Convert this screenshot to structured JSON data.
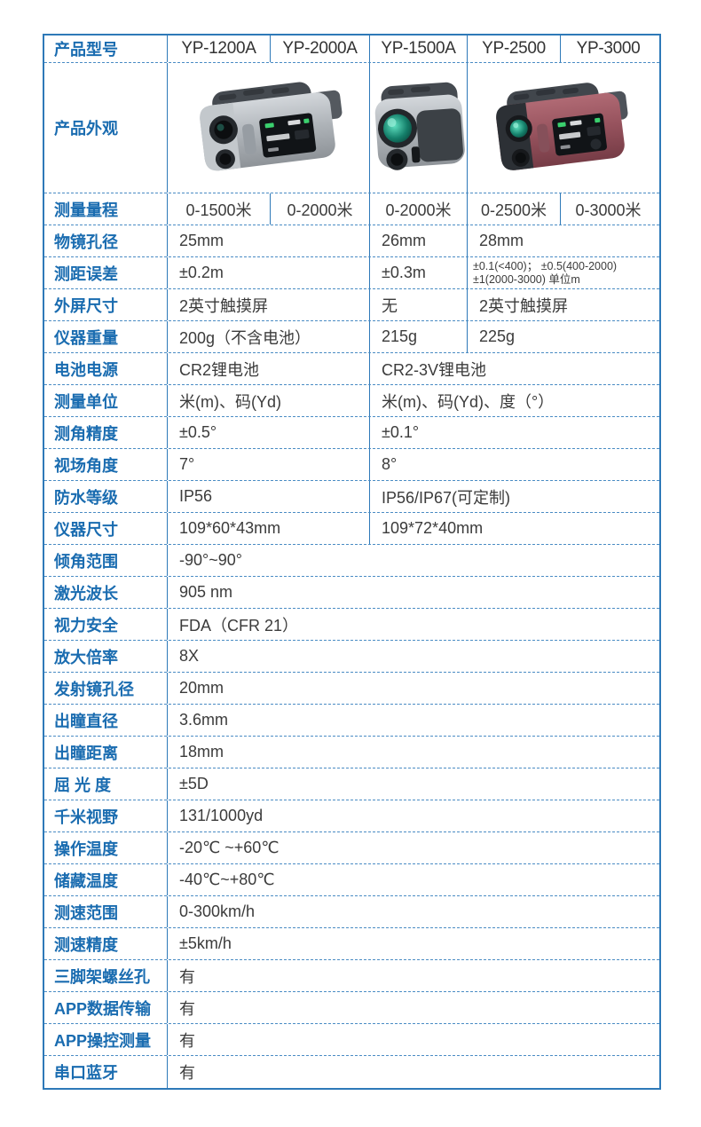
{
  "colors": {
    "accent": "#1a6cb0",
    "border": "#2e79b8",
    "text": "#3b3b3b"
  },
  "table": {
    "header": {
      "label": "产品型号",
      "models": [
        "YP-1200A",
        "YP-2000A",
        "YP-1500A",
        "YP-2500",
        "YP-3000"
      ]
    },
    "appearance": {
      "label": "产品外观",
      "images": [
        {
          "icon": "rangefinder-silver-angled-image",
          "models": "YP-1200A / YP-2000A"
        },
        {
          "icon": "rangefinder-silver-front-image",
          "models": "YP-1500A"
        },
        {
          "icon": "rangefinder-red-angled-image",
          "models": "YP-2500 / YP-3000"
        }
      ]
    },
    "rows": [
      {
        "label": "测量量程",
        "cells": [
          {
            "t": "0-1500米",
            "s": 1,
            "center": true
          },
          {
            "t": "0-2000米",
            "s": 1,
            "center": true
          },
          {
            "t": "0-2000米",
            "s": 1,
            "center": true
          },
          {
            "t": "0-2500米",
            "s": 1,
            "center": true
          },
          {
            "t": "0-3000米",
            "s": 1,
            "center": true
          }
        ]
      },
      {
        "label": "物镜孔径",
        "cells": [
          {
            "t": "25mm",
            "s": 2
          },
          {
            "t": "26mm",
            "s": 1
          },
          {
            "t": "28mm",
            "s": 2
          }
        ]
      },
      {
        "label": "测距误差",
        "cells": [
          {
            "t": "±0.2m",
            "s": 2
          },
          {
            "t": "±0.3m",
            "s": 1
          },
          {
            "t": "±0.1(<400)； ±0.5(400-2000)\n±1(2000-3000) 单位m",
            "s": 2,
            "small": true
          }
        ]
      },
      {
        "label": "外屏尺寸",
        "cells": [
          {
            "t": "2英寸触摸屏",
            "s": 2
          },
          {
            "t": "无",
            "s": 1
          },
          {
            "t": "2英寸触摸屏",
            "s": 2
          }
        ]
      },
      {
        "label": "仪器重量",
        "cells": [
          {
            "t": "200g（不含电池）",
            "s": 2
          },
          {
            "t": "215g",
            "s": 1
          },
          {
            "t": "225g",
            "s": 2
          }
        ]
      },
      {
        "label": "电池电源",
        "cells": [
          {
            "t": "CR2锂电池",
            "s": 2
          },
          {
            "t": "CR2-3V锂电池",
            "s": 3
          }
        ]
      },
      {
        "label": "测量单位",
        "cells": [
          {
            "t": "米(m)、码(Yd)",
            "s": 2
          },
          {
            "t": "米(m)、码(Yd)、度（°）",
            "s": 3
          }
        ]
      },
      {
        "label": "测角精度",
        "cells": [
          {
            "t": "±0.5°",
            "s": 2
          },
          {
            "t": "±0.1°",
            "s": 3
          }
        ]
      },
      {
        "label": "视场角度",
        "cells": [
          {
            "t": "7°",
            "s": 2
          },
          {
            "t": "8°",
            "s": 3
          }
        ]
      },
      {
        "label": "防水等级",
        "cells": [
          {
            "t": "IP56",
            "s": 2
          },
          {
            "t": "IP56/IP67(可定制)",
            "s": 3
          }
        ]
      },
      {
        "label": "仪器尺寸",
        "cells": [
          {
            "t": "109*60*43mm",
            "s": 2
          },
          {
            "t": "109*72*40mm",
            "s": 3
          }
        ]
      },
      {
        "label": "倾角范围",
        "cells": [
          {
            "t": "-90°~90°",
            "s": 5
          }
        ]
      },
      {
        "label": "激光波长",
        "cells": [
          {
            "t": "905 nm",
            "s": 5
          }
        ]
      },
      {
        "label": "视力安全",
        "cells": [
          {
            "t": "FDA（CFR 21）",
            "s": 5
          }
        ]
      },
      {
        "label": "放大倍率",
        "cells": [
          {
            "t": "8X",
            "s": 5
          }
        ]
      },
      {
        "label": "发射镜孔径",
        "cells": [
          {
            "t": "20mm",
            "s": 5
          }
        ]
      },
      {
        "label": "出瞳直径",
        "cells": [
          {
            "t": "3.6mm",
            "s": 5
          }
        ]
      },
      {
        "label": "出瞳距离",
        "cells": [
          {
            "t": "18mm",
            "s": 5
          }
        ]
      },
      {
        "label": "屈 光 度",
        "cells": [
          {
            "t": "±5D",
            "s": 5
          }
        ]
      },
      {
        "label": "千米视野",
        "cells": [
          {
            "t": "131/1000yd",
            "s": 5
          }
        ]
      },
      {
        "label": "操作温度",
        "cells": [
          {
            "t": "-20℃ ~+60℃",
            "s": 5
          }
        ]
      },
      {
        "label": "储藏温度",
        "cells": [
          {
            "t": "-40℃~+80℃",
            "s": 5
          }
        ]
      },
      {
        "label": "测速范围",
        "cells": [
          {
            "t": "0-300km/h",
            "s": 5
          }
        ]
      },
      {
        "label": "测速精度",
        "cells": [
          {
            "t": "±5km/h",
            "s": 5
          }
        ]
      },
      {
        "label": "三脚架螺丝孔",
        "cells": [
          {
            "t": "有",
            "s": 5
          }
        ]
      },
      {
        "label": "APP数据传输",
        "cells": [
          {
            "t": "有",
            "s": 5
          }
        ]
      },
      {
        "label": "APP操控测量",
        "cells": [
          {
            "t": "有",
            "s": 5
          }
        ]
      },
      {
        "label": "串口蓝牙",
        "cells": [
          {
            "t": "有",
            "s": 5
          }
        ]
      }
    ]
  }
}
